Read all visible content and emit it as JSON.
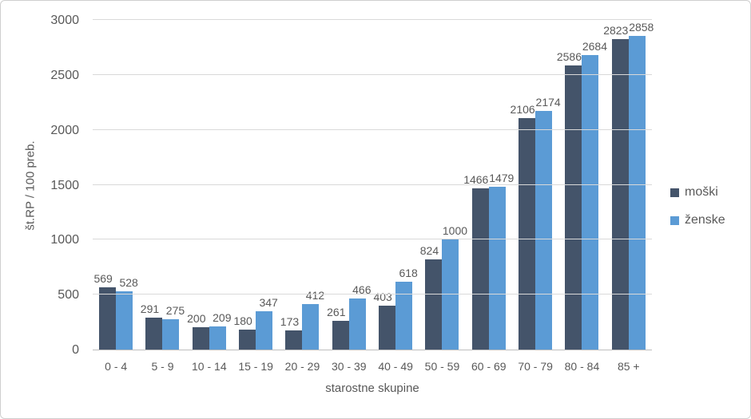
{
  "chart_data": {
    "type": "bar",
    "title": "",
    "xlabel": "starostne skupine",
    "ylabel": "št.RP / 100 preb.",
    "categories": [
      "0 - 4",
      "5 - 9",
      "10 - 14",
      "15 - 19",
      "20 - 29",
      "30 - 39",
      "40 - 49",
      "50 - 59",
      "60 - 69",
      "70 - 79",
      "80 - 84",
      "85 +"
    ],
    "series": [
      {
        "name": "moški",
        "color": "#44546A",
        "values": [
          569,
          291,
          200,
          180,
          173,
          261,
          403,
          824,
          1466,
          2106,
          2586,
          2823
        ]
      },
      {
        "name": "ženske",
        "color": "#5B9BD5",
        "values": [
          528,
          275,
          209,
          347,
          412,
          466,
          618,
          1000,
          1479,
          2174,
          2684,
          2858
        ]
      }
    ],
    "ylim": [
      0,
      3000
    ],
    "yticks": [
      0,
      500,
      1000,
      1500,
      2000,
      2500,
      3000
    ],
    "grid": true,
    "legend_position": "right"
  },
  "colors": {
    "background": "#FFFFFF",
    "border": "#CFCFCF",
    "gridline": "#D9D9D9",
    "axis_line": "#BFBFBF",
    "text": "#595959",
    "series_moski": "#44546A",
    "series_zenske": "#5B9BD5"
  }
}
